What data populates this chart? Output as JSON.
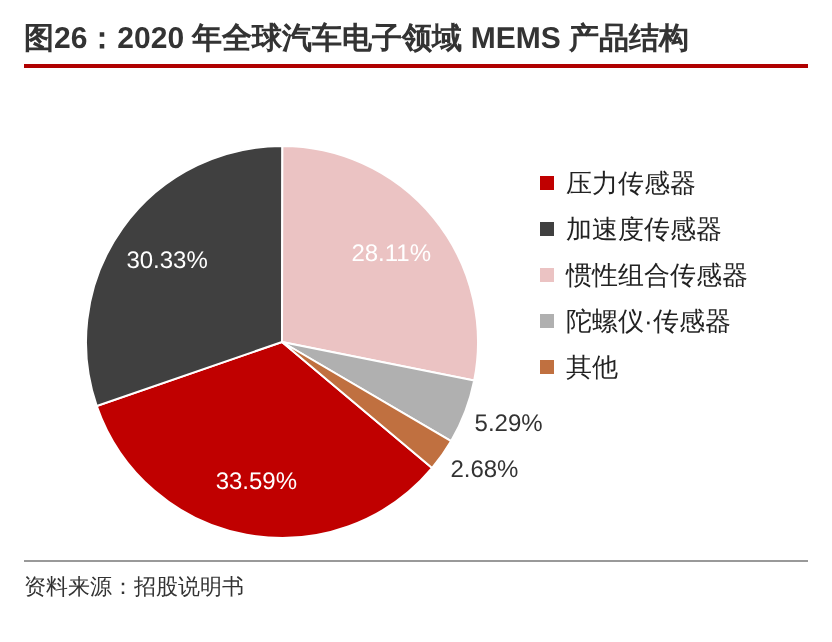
{
  "chart_data": {
    "type": "pie",
    "title": "图26：2020 年全球汽车电子领域 MEMS 产品结构",
    "categories": [
      "压力传感器",
      "加速度传感器",
      "惯性组合传感器",
      "陀螺仪·传感器",
      "其他"
    ],
    "values": [
      33.59,
      30.33,
      28.11,
      5.29,
      2.68
    ],
    "colors": [
      "#c00000",
      "#404040",
      "#ebc3c3",
      "#b0b0b0",
      "#c07040"
    ],
    "value_labels": [
      "33.59%",
      "30.33%",
      "28.11%",
      "5.29%",
      "2.68%"
    ],
    "legend": "right",
    "annotations": [
      "资料来源：招股说明书"
    ]
  }
}
